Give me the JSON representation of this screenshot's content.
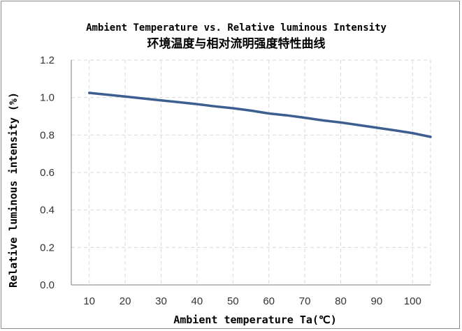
{
  "chart_data": {
    "type": "line",
    "title": "Ambient Temperature vs. Relative luminous Intensity",
    "subtitle": "环境温度与相对流明强度特性曲线",
    "xlabel": "Ambient temperature Ta(℃)",
    "ylabel": "Relative luminous intensity (%)",
    "xlim": [
      5,
      105
    ],
    "ylim": [
      0,
      1.2
    ],
    "x_ticks": [
      10,
      20,
      30,
      40,
      50,
      60,
      70,
      80,
      90,
      100
    ],
    "y_ticks": [
      0.0,
      0.2,
      0.4,
      0.6,
      0.8,
      1.0,
      1.2
    ],
    "y_tick_labels": [
      "0.0",
      "0.2",
      "0.4",
      "0.6",
      "0.8",
      "1.0",
      "1.2"
    ],
    "grid": true,
    "series": [
      {
        "color": "#3c5f8f",
        "x": [
          10,
          20,
          30,
          40,
          45,
          50,
          55,
          60,
          65,
          70,
          75,
          80,
          85,
          90,
          95,
          100,
          105
        ],
        "y": [
          1.025,
          1.005,
          0.985,
          0.965,
          0.953,
          0.943,
          0.93,
          0.915,
          0.905,
          0.892,
          0.878,
          0.867,
          0.853,
          0.839,
          0.825,
          0.81,
          0.79
        ]
      }
    ]
  }
}
